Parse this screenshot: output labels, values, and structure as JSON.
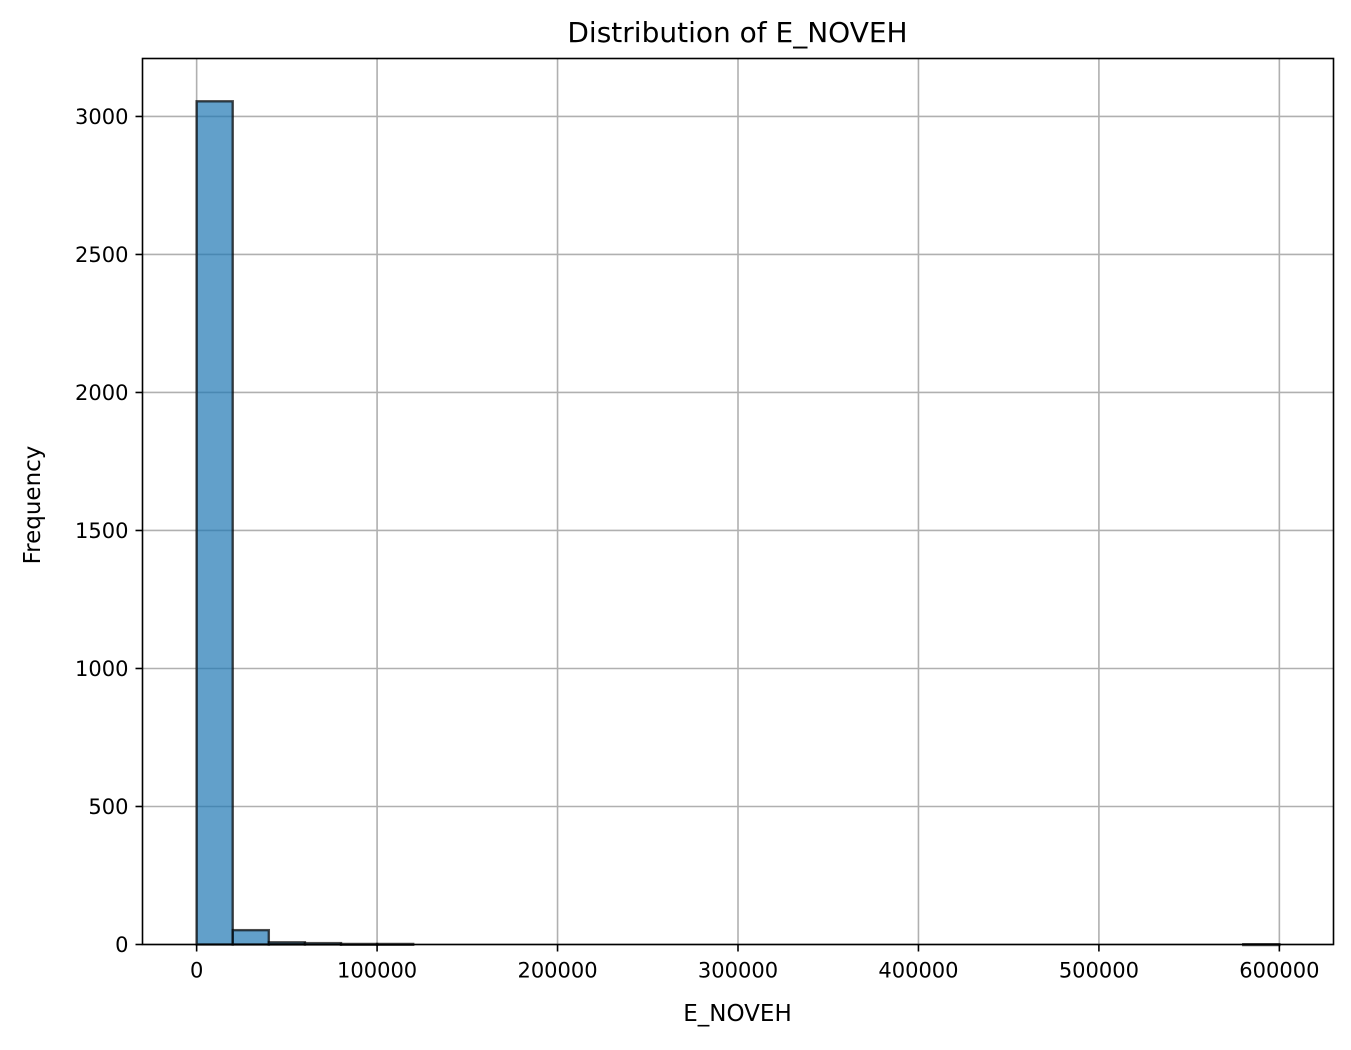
{
  "chart_data": {
    "type": "bar",
    "title": "Distribution of E_NOVEH",
    "xlabel": "E_NOVEH",
    "ylabel": "Frequency",
    "xlim": [
      -30000,
      630000
    ],
    "ylim": [
      0,
      3210
    ],
    "grid": true,
    "x_ticks": [
      {
        "value": 0,
        "label": "0"
      },
      {
        "value": 100000,
        "label": "100000"
      },
      {
        "value": 200000,
        "label": "200000"
      },
      {
        "value": 300000,
        "label": "300000"
      },
      {
        "value": 400000,
        "label": "400000"
      },
      {
        "value": 500000,
        "label": "500000"
      },
      {
        "value": 600000,
        "label": "600000"
      }
    ],
    "y_ticks": [
      {
        "value": 0,
        "label": "0"
      },
      {
        "value": 500,
        "label": "500"
      },
      {
        "value": 1000,
        "label": "1000"
      },
      {
        "value": 1500,
        "label": "1500"
      },
      {
        "value": 2000,
        "label": "2000"
      },
      {
        "value": 2500,
        "label": "2500"
      },
      {
        "value": 3000,
        "label": "3000"
      }
    ],
    "bins": [
      {
        "start": 0,
        "end": 20000,
        "count": 3055
      },
      {
        "start": 20000,
        "end": 40000,
        "count": 52
      },
      {
        "start": 40000,
        "end": 60000,
        "count": 8
      },
      {
        "start": 60000,
        "end": 80000,
        "count": 5
      },
      {
        "start": 80000,
        "end": 100000,
        "count": 2
      },
      {
        "start": 100000,
        "end": 120000,
        "count": 2
      },
      {
        "start": 120000,
        "end": 140000,
        "count": 0
      },
      {
        "start": 140000,
        "end": 160000,
        "count": 0
      },
      {
        "start": 160000,
        "end": 180000,
        "count": 0
      },
      {
        "start": 180000,
        "end": 200000,
        "count": 0
      },
      {
        "start": 200000,
        "end": 220000,
        "count": 0
      },
      {
        "start": 220000,
        "end": 240000,
        "count": 0
      },
      {
        "start": 240000,
        "end": 260000,
        "count": 0
      },
      {
        "start": 260000,
        "end": 280000,
        "count": 0
      },
      {
        "start": 280000,
        "end": 300000,
        "count": 0
      },
      {
        "start": 300000,
        "end": 320000,
        "count": 0
      },
      {
        "start": 320000,
        "end": 340000,
        "count": 0
      },
      {
        "start": 340000,
        "end": 360000,
        "count": 0
      },
      {
        "start": 360000,
        "end": 380000,
        "count": 0
      },
      {
        "start": 380000,
        "end": 400000,
        "count": 0
      },
      {
        "start": 400000,
        "end": 420000,
        "count": 0
      },
      {
        "start": 420000,
        "end": 440000,
        "count": 0
      },
      {
        "start": 440000,
        "end": 460000,
        "count": 0
      },
      {
        "start": 460000,
        "end": 480000,
        "count": 0
      },
      {
        "start": 480000,
        "end": 500000,
        "count": 0
      },
      {
        "start": 500000,
        "end": 520000,
        "count": 0
      },
      {
        "start": 520000,
        "end": 540000,
        "count": 0
      },
      {
        "start": 540000,
        "end": 560000,
        "count": 0
      },
      {
        "start": 560000,
        "end": 580000,
        "count": 0
      },
      {
        "start": 580000,
        "end": 600000,
        "count": 1
      }
    ],
    "colors": {
      "bar_fill": "#1f77b4",
      "bar_edge": "#000000",
      "grid": "#b0b0b0",
      "axis": "#000000"
    }
  }
}
